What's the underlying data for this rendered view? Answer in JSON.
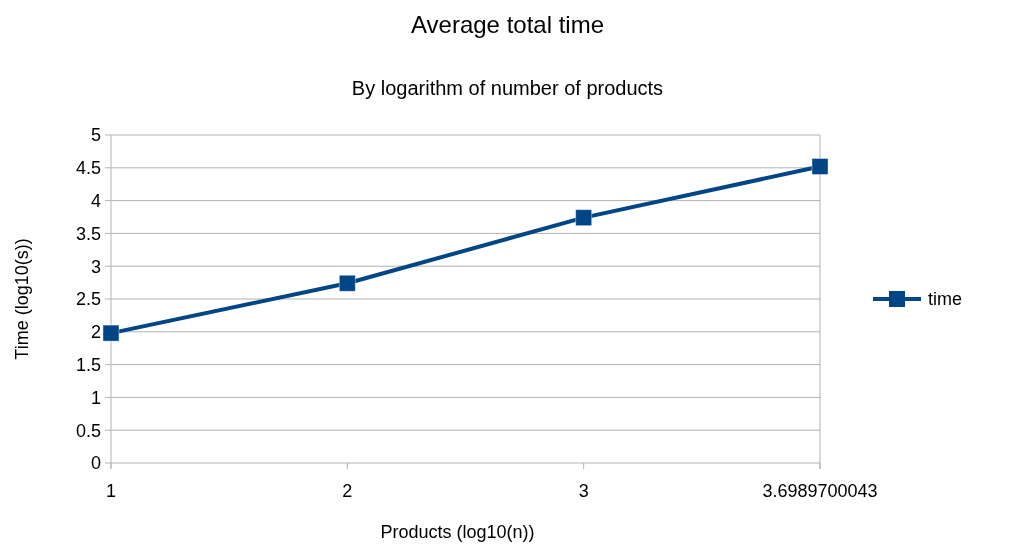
{
  "chart_data": {
    "type": "line",
    "title": "Average total time",
    "subtitle": "By logarithm of number of products",
    "xlabel": "Products (log10(n))",
    "ylabel": "Time (log10(s))",
    "categories": [
      "1",
      "2",
      "3",
      "3.6989700043"
    ],
    "series": [
      {
        "name": "time",
        "color": "#004586",
        "values": [
          1.98,
          2.74,
          3.74,
          4.52
        ]
      }
    ],
    "ylim": [
      0,
      5
    ],
    "yticks": [
      0,
      0.5,
      1,
      1.5,
      2,
      2.5,
      3,
      3.5,
      4,
      4.5,
      5
    ],
    "grid": "y",
    "legend": "right",
    "marker": "square",
    "line_style": "solid"
  }
}
